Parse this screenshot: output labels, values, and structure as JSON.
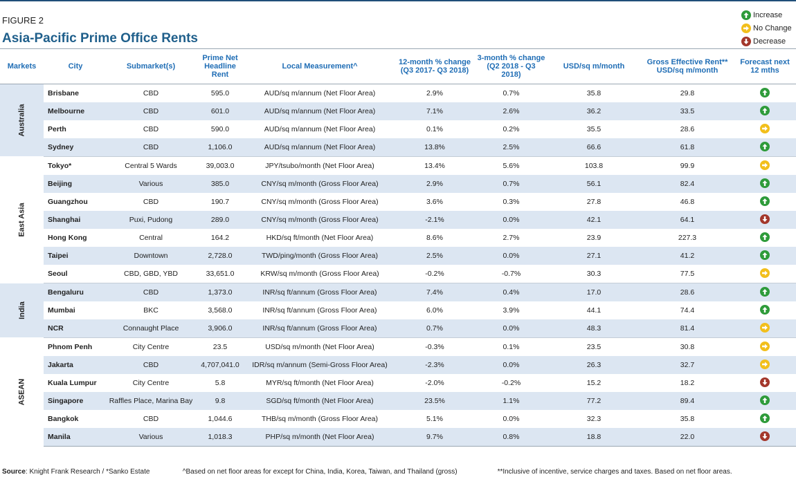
{
  "figure_label": "FIGURE 2",
  "title": "Asia-Pacific Prime Office Rents",
  "legend": [
    {
      "label": "Increase",
      "icon": "increase-arrow-icon",
      "color": "#2e9b3a"
    },
    {
      "label": "No Change",
      "icon": "no-change-arrow-icon",
      "color": "#f2bf1c"
    },
    {
      "label": "Decrease",
      "icon": "decrease-arrow-icon",
      "color": "#a3372b"
    }
  ],
  "columns": [
    "Markets",
    "City",
    "Submarket(s)",
    "Prime Net Headline Rent",
    "Local Measurement^",
    "12-month % change (Q3 2017- Q3 2018)",
    "3-month % change (Q2 2018 - Q3 2018)",
    "USD/sq m/month",
    "Gross Effective Rent** USD/sq m/month",
    "Forecast next 12 mths"
  ],
  "groups": [
    {
      "market": "Australia",
      "rows": [
        {
          "city": "Brisbane",
          "submarket": "CBD",
          "rent": "595.0",
          "measure": "AUD/sq m/annum (Net Floor Area)",
          "chg12": "2.9%",
          "chg3": "0.7%",
          "usd": "35.8",
          "gross": "29.8",
          "forecast": "increase"
        },
        {
          "city": "Melbourne",
          "submarket": "CBD",
          "rent": "601.0",
          "measure": "AUD/sq m/annum (Net Floor Area)",
          "chg12": "7.1%",
          "chg3": "2.6%",
          "usd": "36.2",
          "gross": "33.5",
          "forecast": "increase"
        },
        {
          "city": "Perth",
          "submarket": "CBD",
          "rent": "590.0",
          "measure": "AUD/sq m/annum (Net Floor Area)",
          "chg12": "0.1%",
          "chg3": "0.2%",
          "usd": "35.5",
          "gross": "28.6",
          "forecast": "nochange"
        },
        {
          "city": "Sydney",
          "submarket": "CBD",
          "rent": "1,106.0",
          "measure": "AUD/sq m/annum (Net Floor Area)",
          "chg12": "13.8%",
          "chg3": "2.5%",
          "usd": "66.6",
          "gross": "61.8",
          "forecast": "increase"
        }
      ]
    },
    {
      "market": "East Asia",
      "rows": [
        {
          "city": "Tokyo*",
          "submarket": "Central 5 Wards",
          "rent": "39,003.0",
          "measure": "JPY/tsubo/month (Net Floor Area)",
          "chg12": "13.4%",
          "chg3": "5.6%",
          "usd": "103.8",
          "gross": "99.9",
          "forecast": "nochange"
        },
        {
          "city": "Beijing",
          "submarket": "Various",
          "rent": "385.0",
          "measure": "CNY/sq m/month (Gross Floor Area)",
          "chg12": "2.9%",
          "chg3": "0.7%",
          "usd": "56.1",
          "gross": "82.4",
          "forecast": "increase"
        },
        {
          "city": "Guangzhou",
          "submarket": "CBD",
          "rent": "190.7",
          "measure": "CNY/sq m/month (Gross Floor Area)",
          "chg12": "3.6%",
          "chg3": "0.3%",
          "usd": "27.8",
          "gross": "46.8",
          "forecast": "increase"
        },
        {
          "city": "Shanghai",
          "submarket": "Puxi, Pudong",
          "rent": "289.0",
          "measure": "CNY/sq m/month (Gross Floor Area)",
          "chg12": "-2.1%",
          "chg3": "0.0%",
          "usd": "42.1",
          "gross": "64.1",
          "forecast": "decrease"
        },
        {
          "city": "Hong Kong",
          "submarket": "Central",
          "rent": "164.2",
          "measure": "HKD/sq ft/month (Net Floor Area)",
          "chg12": "8.6%",
          "chg3": "2.7%",
          "usd": "23.9",
          "gross": "227.3",
          "forecast": "increase"
        },
        {
          "city": "Taipei",
          "submarket": "Downtown",
          "rent": "2,728.0",
          "measure": "TWD/ping/month (Gross Floor Area)",
          "chg12": "2.5%",
          "chg3": "0.0%",
          "usd": "27.1",
          "gross": "41.2",
          "forecast": "increase"
        },
        {
          "city": "Seoul",
          "submarket": "CBD, GBD, YBD",
          "rent": "33,651.0",
          "measure": "KRW/sq m/month (Gross Floor Area)",
          "chg12": "-0.2%",
          "chg3": "-0.7%",
          "usd": "30.3",
          "gross": "77.5",
          "forecast": "nochange"
        }
      ]
    },
    {
      "market": "India",
      "rows": [
        {
          "city": "Bengaluru",
          "submarket": "CBD",
          "rent": "1,373.0",
          "measure": "INR/sq ft/annum (Gross Floor Area)",
          "chg12": "7.4%",
          "chg3": "0.4%",
          "usd": "17.0",
          "gross": "28.6",
          "forecast": "increase"
        },
        {
          "city": "Mumbai",
          "submarket": "BKC",
          "rent": "3,568.0",
          "measure": "INR/sq ft/annum (Gross Floor Area)",
          "chg12": "6.0%",
          "chg3": "3.9%",
          "usd": "44.1",
          "gross": "74.4",
          "forecast": "increase"
        },
        {
          "city": "NCR",
          "submarket": "Connaught Place",
          "rent": "3,906.0",
          "measure": "INR/sq ft/annum (Gross Floor Area)",
          "chg12": "0.7%",
          "chg3": "0.0%",
          "usd": "48.3",
          "gross": "81.4",
          "forecast": "nochange"
        }
      ]
    },
    {
      "market": "ASEAN",
      "rows": [
        {
          "city": "Phnom Penh",
          "submarket": "City Centre",
          "rent": "23.5",
          "measure": "USD/sq m/month (Net Floor Area)",
          "chg12": "-0.3%",
          "chg3": "0.1%",
          "usd": "23.5",
          "gross": "30.8",
          "forecast": "nochange"
        },
        {
          "city": "Jakarta",
          "submarket": "CBD",
          "rent": "4,707,041.0",
          "measure": "IDR/sq m/annum (Semi-Gross Floor Area)",
          "chg12": "-2.3%",
          "chg3": "0.0%",
          "usd": "26.3",
          "gross": "32.7",
          "forecast": "nochange"
        },
        {
          "city": "Kuala Lumpur",
          "submarket": "City Centre",
          "rent": "5.8",
          "measure": "MYR/sq ft/month (Net Floor Area)",
          "chg12": "-2.0%",
          "chg3": "-0.2%",
          "usd": "15.2",
          "gross": "18.2",
          "forecast": "decrease"
        },
        {
          "city": "Singapore",
          "submarket": "Raffles Place, Marina Bay",
          "rent": "9.8",
          "measure": "SGD/sq ft/month (Net Floor Area)",
          "chg12": "23.5%",
          "chg3": "1.1%",
          "usd": "77.2",
          "gross": "89.4",
          "forecast": "increase"
        },
        {
          "city": "Bangkok",
          "submarket": "CBD",
          "rent": "1,044.6",
          "measure": "THB/sq m/month (Gross Floor Area)",
          "chg12": "5.1%",
          "chg3": "0.0%",
          "usd": "32.3",
          "gross": "35.8",
          "forecast": "increase"
        },
        {
          "city": "Manila",
          "submarket": "Various",
          "rent": "1,018.3",
          "measure": "PHP/sq m/month (Net Floor Area)",
          "chg12": "9.7%",
          "chg3": "0.8%",
          "usd": "18.8",
          "gross": "22.0",
          "forecast": "decrease"
        }
      ]
    }
  ],
  "footer": {
    "source_label": "Source",
    "source_text": ": Knight Frank Research / *Sanko Estate",
    "note1": "^Based on net floor areas for except for China, India, Korea, Taiwan, and Thailand (gross)",
    "note2": "**Inclusive of incentive, service charges and taxes. Based on net floor areas."
  }
}
